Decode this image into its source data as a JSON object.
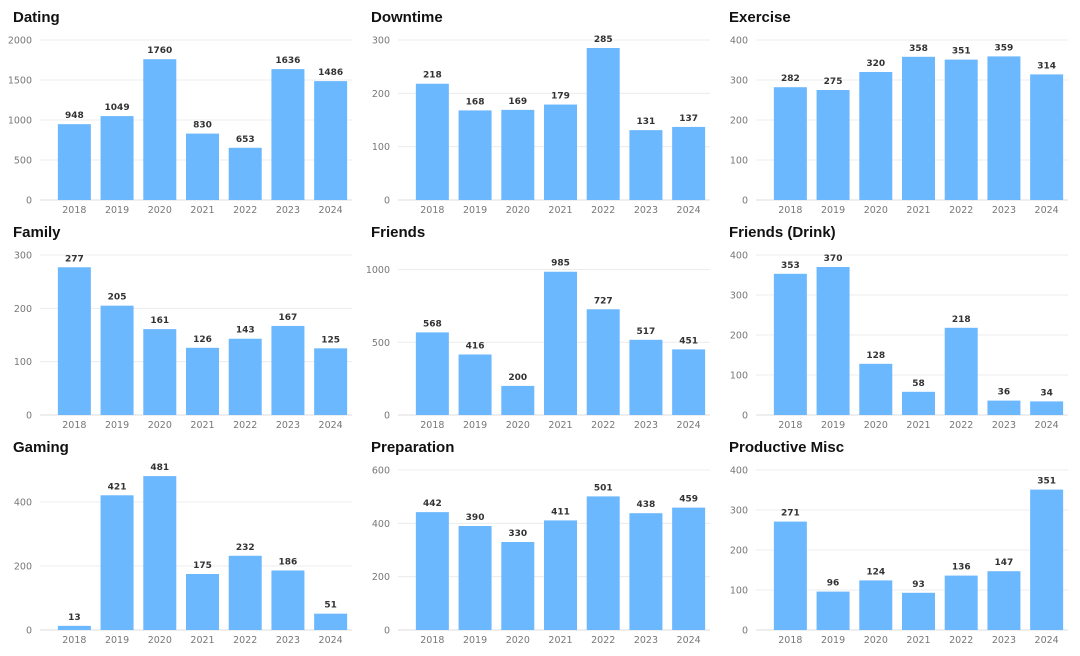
{
  "chart_data": [
    {
      "type": "bar",
      "title": "Dating",
      "categories": [
        "2018",
        "2019",
        "2020",
        "2021",
        "2022",
        "2023",
        "2024"
      ],
      "values": [
        948,
        1049,
        1760,
        830,
        653,
        1636,
        1486
      ],
      "ylim": [
        0,
        2000
      ],
      "yticks": [
        0,
        500,
        1000,
        1500,
        2000
      ],
      "color": "#6CB8FF"
    },
    {
      "type": "bar",
      "title": "Downtime",
      "categories": [
        "2018",
        "2019",
        "2020",
        "2021",
        "2022",
        "2023",
        "2024"
      ],
      "values": [
        218,
        168,
        169,
        179,
        285,
        131,
        137
      ],
      "ylim": [
        0,
        300
      ],
      "yticks": [
        0,
        100,
        200,
        300
      ],
      "color": "#6CB8FF"
    },
    {
      "type": "bar",
      "title": "Exercise",
      "categories": [
        "2018",
        "2019",
        "2020",
        "2021",
        "2022",
        "2023",
        "2024"
      ],
      "values": [
        282,
        275,
        320,
        358,
        351,
        359,
        314
      ],
      "ylim": [
        0,
        400
      ],
      "yticks": [
        0,
        100,
        200,
        300,
        400
      ],
      "color": "#6CB8FF"
    },
    {
      "type": "bar",
      "title": "Family",
      "categories": [
        "2018",
        "2019",
        "2020",
        "2021",
        "2022",
        "2023",
        "2024"
      ],
      "values": [
        277,
        205,
        161,
        126,
        143,
        167,
        125
      ],
      "ylim": [
        0,
        300
      ],
      "yticks": [
        0,
        100,
        200,
        300
      ],
      "color": "#6CB8FF"
    },
    {
      "type": "bar",
      "title": "Friends",
      "categories": [
        "2018",
        "2019",
        "2020",
        "2021",
        "2022",
        "2023",
        "2024"
      ],
      "values": [
        568,
        416,
        200,
        985,
        727,
        517,
        451
      ],
      "ylim": [
        0,
        1100
      ],
      "yticks": [
        0,
        500,
        1000
      ],
      "color": "#6CB8FF"
    },
    {
      "type": "bar",
      "title": "Friends (Drink)",
      "categories": [
        "2018",
        "2019",
        "2020",
        "2021",
        "2022",
        "2023",
        "2024"
      ],
      "values": [
        353,
        370,
        128,
        58,
        218,
        36,
        34
      ],
      "ylim": [
        0,
        400
      ],
      "yticks": [
        0,
        100,
        200,
        300,
        400
      ],
      "color": "#6CB8FF"
    },
    {
      "type": "bar",
      "title": "Gaming",
      "categories": [
        "2018",
        "2019",
        "2020",
        "2021",
        "2022",
        "2023",
        "2024"
      ],
      "values": [
        13,
        421,
        481,
        175,
        232,
        186,
        51
      ],
      "ylim": [
        0,
        500
      ],
      "yticks": [
        0,
        200,
        400
      ],
      "color": "#6CB8FF"
    },
    {
      "type": "bar",
      "title": "Preparation",
      "categories": [
        "2018",
        "2019",
        "2020",
        "2021",
        "2022",
        "2023",
        "2024"
      ],
      "values": [
        442,
        390,
        330,
        411,
        501,
        438,
        459
      ],
      "ylim": [
        0,
        600
      ],
      "yticks": [
        0,
        200,
        400,
        600
      ],
      "color": "#6CB8FF"
    },
    {
      "type": "bar",
      "title": "Productive Misc",
      "categories": [
        "2018",
        "2019",
        "2020",
        "2021",
        "2022",
        "2023",
        "2024"
      ],
      "values": [
        271,
        96,
        124,
        93,
        136,
        147,
        351
      ],
      "ylim": [
        0,
        400
      ],
      "yticks": [
        0,
        100,
        200,
        300,
        400
      ],
      "color": "#6CB8FF"
    }
  ]
}
